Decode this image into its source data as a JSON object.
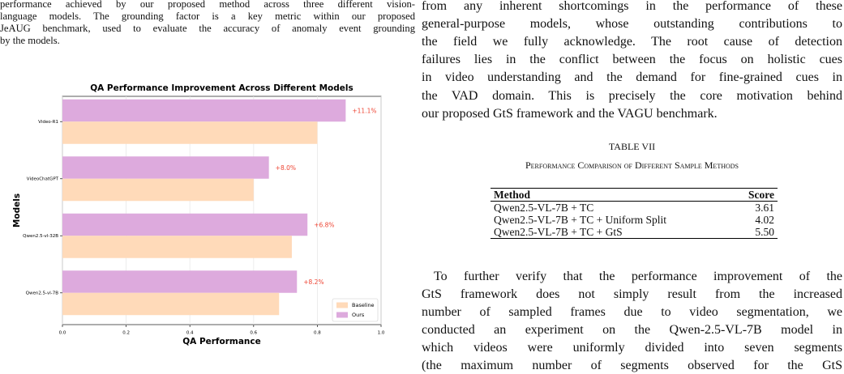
{
  "left_text": {
    "lines": [
      "performance achieved by our proposed method across three different vision-",
      "language models. The grounding factor is a key metric within our proposed",
      "JeAUG benchmark, used to evaluate the accuracy of anomaly event grounding",
      "by the models."
    ]
  },
  "chart_data": {
    "type": "barh",
    "title": "QA Performance Improvement Across Different Models",
    "x_label": "QA Performance",
    "y_label": "Models",
    "categories": [
      "Video-R1",
      "VideoChatGPT",
      "Qwen2.5-vl-32B",
      "Qwen2.5-vl-7B"
    ],
    "series": [
      {
        "name": "Baseline",
        "color": "#ffdab9",
        "values": [
          0.8,
          0.6,
          0.72,
          0.68
        ]
      },
      {
        "name": "Ours",
        "color": "#ddaadd",
        "values": [
          0.889,
          0.648,
          0.769,
          0.736
        ]
      }
    ],
    "annotations": [
      "+11.1%",
      "+8.0%",
      "+6.8%",
      "+8.2%"
    ],
    "annotation_color": "#ee4433",
    "xlim": [
      0,
      1
    ],
    "xticks": [
      {
        "value": 0,
        "label": "0.0"
      },
      0.2,
      0.4,
      0.6,
      0.8,
      {
        "value": 1,
        "label": "1.0"
      }
    ],
    "grid": true,
    "legend": "lower right"
  },
  "right_text": {
    "lines": [
      "from any inherent shortcomings in the performance of these",
      "general-purpose models, whose outstanding contributions to",
      "the field we fully acknowledge. The root cause of detection",
      "failures lies in the conflict between the focus on holistic cues",
      "in video understanding and the demand for fine-grained cues in",
      "the VAD domain. This is precisely the core motivation behind",
      "our proposed GtS framework and the VAGU benchmark."
    ],
    "paragraph": [
      "To further verify that the performance improvement of the",
      "GtS framework does not simply result from the increased",
      "number of sampled frames due to video segmentation, we",
      "conducted an experiment on the Qwen-2.5-VL-7B model in",
      "which videos were uniformly divided into seven segments",
      "(the maximum number of segments observed for the GtS"
    ]
  },
  "table": {
    "label": "TABLE VII",
    "caption": "Performance Comparison of Different Sample Methods",
    "header": [
      "Method",
      "Score"
    ],
    "rows": [
      [
        "Qwen2.5-VL-7B + TC",
        "3.61"
      ],
      [
        "Qwen2.5-VL-7B + TC + Uniform Split",
        "4.02"
      ],
      [
        "Qwen2.5-VL-7B + TC + GtS",
        "5.50"
      ]
    ]
  }
}
